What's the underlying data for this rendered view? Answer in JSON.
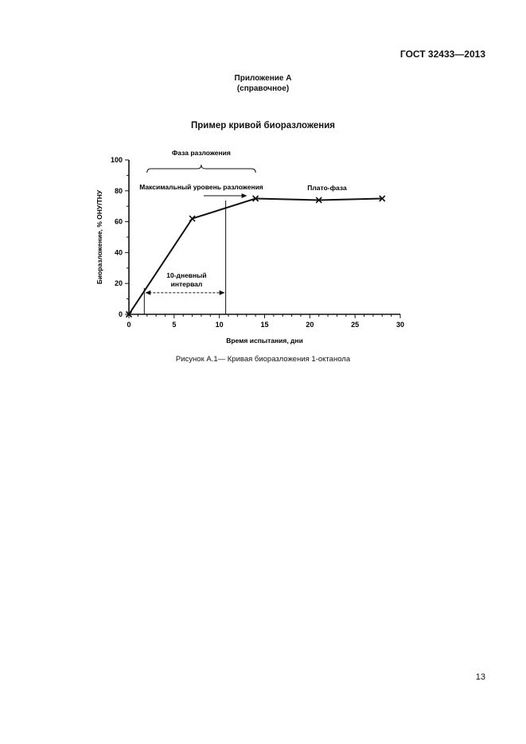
{
  "header": {
    "doc_code": "ГОСТ 32433—2013"
  },
  "appendix": {
    "title": "Приложение А",
    "subtitle": "(справочное)"
  },
  "figure": {
    "title": "Пример кривой биоразложения",
    "caption": "Рисунок А.1— Кривая биоразложения 1-октанола"
  },
  "page_number": "13",
  "chart_data": {
    "type": "line",
    "title": "Пример кривой биоразложения",
    "xlabel": "Время испытания, дни",
    "ylabel": "Биоразложение, % ОНУ/ТНУ",
    "xlim": [
      0,
      30
    ],
    "ylim": [
      0,
      100
    ],
    "x_ticks": [
      0,
      5,
      10,
      15,
      20,
      25,
      30
    ],
    "y_ticks": [
      0,
      20,
      40,
      60,
      80,
      100
    ],
    "grid": false,
    "series": [
      {
        "points": [
          [
            0,
            0
          ],
          [
            7,
            62
          ],
          [
            14,
            75
          ],
          [
            21,
            74
          ],
          [
            28,
            75
          ]
        ],
        "color": "#111111"
      }
    ],
    "annotations": {
      "phase_label": "Фаза разложения",
      "phase_range": [
        2,
        14
      ],
      "max_level_label": "Максимальный уровень разложения",
      "plateau_label": "Плато-фаза",
      "interval_label_line1": "10-дневный",
      "interval_label_line2": "интервал",
      "interval_start": 1.7,
      "interval_end": 10.7,
      "interval_level": 14
    }
  }
}
